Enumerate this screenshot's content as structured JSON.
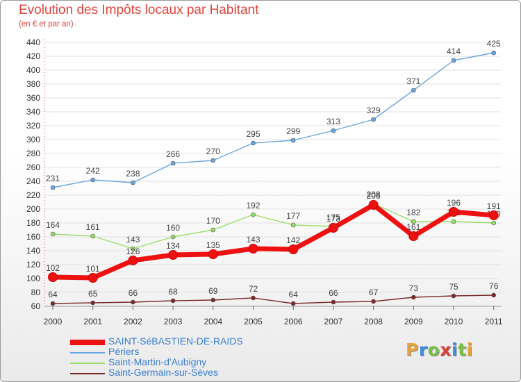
{
  "header": {
    "title": "Evolution des Impôts locaux par Habitant",
    "subtitle": "(en € et par an)"
  },
  "logo": {
    "letters": [
      "P",
      "r",
      "o",
      "x",
      "i",
      "t",
      "i"
    ],
    "colors": [
      "#e8a13a",
      "#3b8ed8",
      "#7bc043",
      "#d9403a",
      "#3b8ed8",
      "#7bc043",
      "#e8a13a"
    ]
  },
  "chart_data": {
    "type": "line",
    "title": "Evolution des Impôts locaux par Habitant",
    "subtitle": "(en € et par an)",
    "categories": [
      "2000",
      "2001",
      "2002",
      "2003",
      "2004",
      "2005",
      "2006",
      "2007",
      "2008",
      "2009",
      "2010",
      "2011"
    ],
    "ylim": [
      60,
      440
    ],
    "yticks": [
      60,
      80,
      100,
      120,
      140,
      160,
      180,
      200,
      220,
      240,
      260,
      280,
      300,
      320,
      340,
      360,
      380,
      400,
      420,
      440
    ],
    "grid": true,
    "legend_position": "bottom-left",
    "series": [
      {
        "name": "SAINT-SéBASTIEN-DE-RAIDS",
        "color": "#ee1111",
        "values": [
          102,
          101,
          126,
          134,
          135,
          143,
          142,
          173,
          206,
          161,
          196,
          191
        ]
      },
      {
        "name": "Périers",
        "color": "#6aa6e0",
        "values": [
          231,
          242,
          238,
          266,
          270,
          295,
          299,
          313,
          329,
          371,
          414,
          425
        ]
      },
      {
        "name": "Saint-Martin-d'Aubigny",
        "color": "#99dd66",
        "values": [
          164,
          161,
          143,
          160,
          170,
          192,
          177,
          175,
          208,
          182,
          182,
          180
        ]
      },
      {
        "name": "Saint-Germain-sur-Sèves",
        "color": "#7a2a2a",
        "values": [
          64,
          65,
          66,
          68,
          69,
          72,
          64,
          66,
          67,
          73,
          75,
          76
        ]
      }
    ]
  }
}
